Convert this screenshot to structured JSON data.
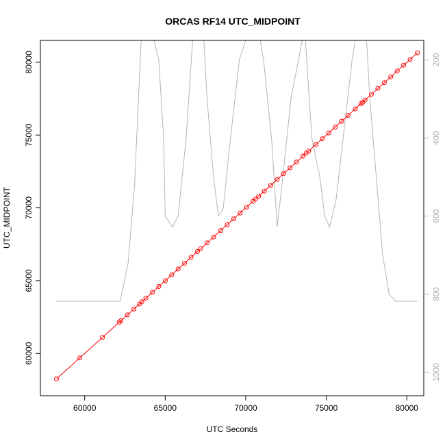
{
  "chart_data": {
    "type": "scatter",
    "title": "ORCAS RF14 UTC_MIDPOINT",
    "xlabel": "UTC Seconds",
    "ylabel": "UTC_MIDPOINT",
    "xlim": [
      57250,
      81050
    ],
    "ylim": [
      57100,
      81500
    ],
    "x_ticks": [
      60000,
      65000,
      70000,
      75000,
      80000
    ],
    "x_tick_labels": [
      "60000",
      "65000",
      "70000",
      "75000",
      "80000"
    ],
    "y_ticks": [
      60000,
      65000,
      70000,
      75000,
      80000
    ],
    "y_tick_labels": [
      "60000",
      "65000",
      "70000",
      "75000",
      "80000"
    ],
    "y2lim": [
      1060,
      150
    ],
    "y2_ticks": [
      200,
      400,
      600,
      800,
      1000
    ],
    "y2_tick_labels": [
      "200",
      "400",
      "600",
      "800",
      "1000"
    ],
    "grid": false,
    "legend": "none",
    "series": [
      {
        "kind": "points+line",
        "color": "#ff0000",
        "x": [
          58250,
          59700,
          61100,
          62150,
          62250,
          62650,
          63050,
          63400,
          63550,
          63800,
          64200,
          64600,
          65000,
          65400,
          65800,
          66200,
          66600,
          67000,
          67200,
          67600,
          68000,
          68450,
          68850,
          69250,
          69650,
          70050,
          70450,
          70600,
          70800,
          71150,
          71550,
          71950,
          72350,
          72750,
          73150,
          73550,
          73750,
          73900,
          74350,
          74750,
          75150,
          75550,
          75950,
          76350,
          76800,
          77150,
          77250,
          77400,
          77800,
          78200,
          78600,
          79000,
          79400,
          79800,
          80200,
          80650
        ],
        "y": [
          58250,
          59700,
          61100,
          62150,
          62250,
          62650,
          63050,
          63400,
          63550,
          63800,
          64200,
          64600,
          65000,
          65400,
          65800,
          66200,
          66600,
          67000,
          67200,
          67600,
          68000,
          68450,
          68850,
          69250,
          69650,
          70050,
          70450,
          70600,
          70800,
          71150,
          71550,
          71950,
          72350,
          72750,
          73150,
          73550,
          73750,
          73900,
          74350,
          74750,
          75150,
          75550,
          75950,
          76350,
          76800,
          77150,
          77250,
          77400,
          77800,
          78200,
          78600,
          79000,
          79400,
          79800,
          80200,
          80650
        ]
      },
      {
        "kind": "line",
        "axis": "right",
        "color": "#b4b4b4",
        "x": [
          58250,
          60000,
          61500,
          62200,
          62700,
          63100,
          63500,
          64300,
          64600,
          64900,
          65000,
          65450,
          65800,
          66300,
          66700,
          67400,
          67600,
          68000,
          68300,
          68600,
          69000,
          69600,
          70000,
          70100,
          70900,
          71100,
          71600,
          71950,
          72300,
          72800,
          73500,
          73700,
          74100,
          74600,
          74900,
          75200,
          75600,
          76600,
          76800,
          77500,
          77700,
          78100,
          78500,
          78900,
          79300,
          79800,
          80650
        ],
        "y": [
          818,
          818,
          818,
          818,
          720,
          520,
          150,
          150,
          200,
          400,
          600,
          628,
          600,
          400,
          150,
          150,
          300,
          500,
          600,
          580,
          420,
          200,
          150,
          150,
          150,
          200,
          400,
          628,
          500,
          300,
          150,
          150,
          400,
          500,
          600,
          628,
          560,
          200,
          150,
          150,
          300,
          500,
          700,
          800,
          818,
          818,
          818
        ]
      }
    ]
  }
}
